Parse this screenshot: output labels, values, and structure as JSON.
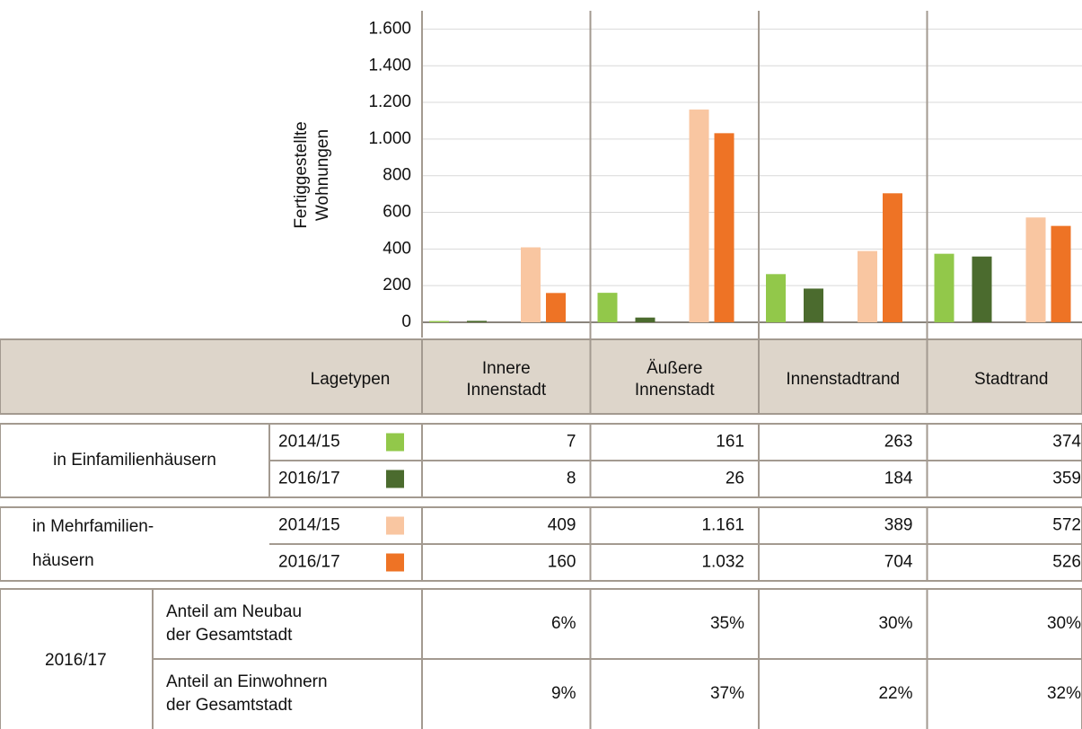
{
  "chart_data": {
    "type": "bar",
    "ylabel": [
      "Fertiggestellte",
      "Wohnungen"
    ],
    "categories": [
      [
        "Innere",
        "Innenstadt"
      ],
      [
        "Äußere",
        "Innenstadt"
      ],
      [
        "Innenstadtrand"
      ],
      [
        "Stadtrand"
      ]
    ],
    "category_header": "Lagetypen",
    "ylim": [
      0,
      1700
    ],
    "yticks": [
      0,
      200,
      400,
      600,
      800,
      {
        "value": 1000,
        "label": "1.000"
      },
      {
        "value": 1200,
        "label": "1.200"
      },
      {
        "value": 1400,
        "label": "1.400"
      },
      {
        "value": 1600,
        "label": "1.600"
      }
    ],
    "grid": true,
    "groups": [
      {
        "label": [
          "in Einfamilienhäusern"
        ]
      },
      {
        "label": [
          "in Mehrfamilien-",
          "häusern"
        ]
      }
    ],
    "series": [
      {
        "name": "2014/15",
        "color": "#92c84a",
        "values": [
          7,
          161,
          263,
          374
        ]
      },
      {
        "name": "2016/17",
        "color": "#4b6b2e",
        "values": [
          8,
          26,
          184,
          359
        ]
      },
      {
        "name": "2014/15",
        "color": "#f9c6a1",
        "values": [
          409,
          1161,
          389,
          572
        ],
        "value_labels": [
          "409",
          "1.161",
          "389",
          "572"
        ]
      },
      {
        "name": "2016/17",
        "color": "#ee7325",
        "values": [
          160,
          1032,
          704,
          526
        ],
        "value_labels": [
          "160",
          "1.032",
          "704",
          "526"
        ]
      }
    ],
    "shares": {
      "label": "2016/17",
      "rows": [
        {
          "label": [
            "Anteil am Neubau",
            "der Gesamtstadt"
          ],
          "values": [
            6,
            35,
            30,
            30
          ],
          "value_labels": [
            "6%",
            "35%",
            "30%",
            "30%"
          ]
        },
        {
          "label": [
            "Anteil an Einwohnern",
            "der Gesamtstadt"
          ],
          "values": [
            9,
            37,
            22,
            32
          ],
          "value_labels": [
            "9%",
            "37%",
            "22%",
            "32%"
          ]
        }
      ]
    }
  }
}
